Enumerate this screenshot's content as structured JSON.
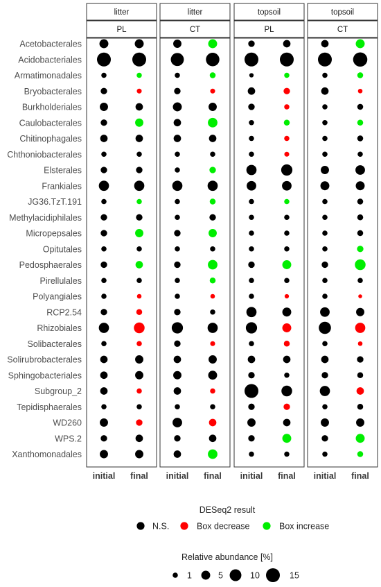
{
  "chart_data": {
    "type": "scatter",
    "title": "",
    "xlabel": "",
    "ylabel": "",
    "layer_strip": [
      "litter",
      "litter",
      "topsoil",
      "topsoil"
    ],
    "management_strip": [
      "PL",
      "CT",
      "PL",
      "CT"
    ],
    "x_categories": [
      "initial",
      "final"
    ],
    "y_categories": [
      "Acetobacterales",
      "Acidobacteriales",
      "Armatimonadales",
      "Bryobacterales",
      "Burkholderiales",
      "Caulobacterales",
      "Chitinophagales",
      "Chthoniobacterales",
      "Elsterales",
      "Frankiales",
      "JG36.TzT.191",
      "Methylacidiphilales",
      "Micropepsales",
      "Opitutales",
      "Pedosphaerales",
      "Pirellulales",
      "Polyangiales",
      "RCP2.54",
      "Rhizobiales",
      "Solibacterales",
      "Solirubrobacterales",
      "Sphingobacteriales",
      "Subgroup_2",
      "Tepidisphaerales",
      "WD260",
      "WPS.2",
      "Xanthomonadales"
    ],
    "color_legend": {
      "title": "DESeq2 result",
      "entries": [
        {
          "label": "N.S.",
          "color": "#000000"
        },
        {
          "label": "Box decrease",
          "color": "#ff0000"
        },
        {
          "label": "Box increase",
          "color": "#00ee00"
        }
      ]
    },
    "size_legend": {
      "title": "Relative abundance [%]",
      "values": [
        1,
        5,
        10,
        15
      ],
      "labels": [
        "1",
        "5",
        "10",
        "15"
      ]
    },
    "panels": [
      {
        "layer": "litter",
        "management": "PL",
        "initial": [
          5,
          15,
          1,
          2,
          4,
          2,
          3,
          1,
          2,
          7,
          1,
          2,
          2,
          1,
          2,
          1,
          1,
          2,
          7,
          1,
          3,
          3,
          3,
          1,
          4,
          2,
          4
        ],
        "final": [
          5,
          15,
          1,
          0.8,
          3,
          4,
          3,
          1,
          2,
          7,
          1,
          2,
          4,
          1,
          3,
          1,
          0.6,
          1.5,
          8,
          1,
          4,
          4,
          1,
          1,
          2,
          3,
          4
        ],
        "final_status": [
          "ns",
          "ns",
          "inc",
          "dec",
          "ns",
          "inc",
          "ns",
          "ns",
          "ns",
          "ns",
          "inc",
          "ns",
          "inc",
          "ns",
          "inc",
          "ns",
          "dec",
          "dec",
          "dec",
          "dec",
          "ns",
          "ns",
          "dec",
          "ns",
          "dec",
          "ns",
          "ns"
        ]
      },
      {
        "layer": "litter",
        "management": "CT",
        "initial": [
          4,
          13,
          1,
          2,
          5,
          3,
          3,
          1,
          1,
          7,
          1,
          1,
          2,
          1,
          2,
          1,
          1,
          2,
          9,
          2,
          3,
          4,
          3,
          1,
          6,
          2,
          3
        ],
        "final": [
          5,
          14,
          1.5,
          0.8,
          4,
          6,
          3,
          1,
          2,
          7,
          1.5,
          2,
          4,
          1,
          6,
          1.5,
          0.6,
          1,
          7,
          0.8,
          4,
          5,
          1,
          1,
          3,
          3,
          6
        ],
        "final_status": [
          "inc",
          "ns",
          "inc",
          "dec",
          "ns",
          "inc",
          "ns",
          "ns",
          "inc",
          "ns",
          "inc",
          "ns",
          "inc",
          "ns",
          "inc",
          "inc",
          "dec",
          "ns",
          "ns",
          "dec",
          "ns",
          "ns",
          "dec",
          "ns",
          "dec",
          "ns",
          "inc"
        ]
      },
      {
        "layer": "topsoil",
        "management": "PL",
        "initial": [
          2,
          15,
          0.5,
          3,
          2,
          1,
          1,
          1,
          7,
          6,
          1,
          1,
          1,
          1,
          2,
          1,
          1,
          7,
          9,
          1,
          3,
          2,
          15,
          2,
          4,
          2,
          1
        ],
        "final": [
          3,
          15,
          1,
          2,
          1,
          1.5,
          1,
          0.8,
          9,
          6,
          1,
          1,
          1,
          1,
          5,
          1,
          0.5,
          5,
          5,
          1.5,
          3,
          1,
          8,
          2,
          3,
          5,
          1
        ],
        "final_status": [
          "ns",
          "ns",
          "inc",
          "dec",
          "dec",
          "inc",
          "dec",
          "dec",
          "ns",
          "ns",
          "inc",
          "ns",
          "ns",
          "ns",
          "inc",
          "ns",
          "dec",
          "ns",
          "dec",
          "dec",
          "ns",
          "ns",
          "ns",
          "dec",
          "ns",
          "inc",
          "ns"
        ]
      },
      {
        "layer": "topsoil",
        "management": "CT",
        "initial": [
          3,
          15,
          1,
          3,
          1,
          1,
          1,
          1,
          4,
          5,
          1,
          1,
          1,
          1,
          2,
          1,
          1,
          6,
          11,
          1,
          3,
          2,
          7,
          1,
          4,
          2,
          1
        ],
        "final": [
          5,
          16,
          1.5,
          0.6,
          1.5,
          1.5,
          1.5,
          1,
          6,
          5,
          1.5,
          1.5,
          1.5,
          2,
          8,
          1,
          0.3,
          4,
          7,
          0.6,
          2,
          1.5,
          3,
          1.5,
          4,
          5,
          1.5
        ],
        "final_status": [
          "inc",
          "ns",
          "inc",
          "dec",
          "ns",
          "inc",
          "ns",
          "ns",
          "ns",
          "ns",
          "ns",
          "ns",
          "ns",
          "inc",
          "inc",
          "ns",
          "dec",
          "ns",
          "dec",
          "dec",
          "ns",
          "ns",
          "dec",
          "ns",
          "ns",
          "inc",
          "inc"
        ]
      }
    ]
  }
}
